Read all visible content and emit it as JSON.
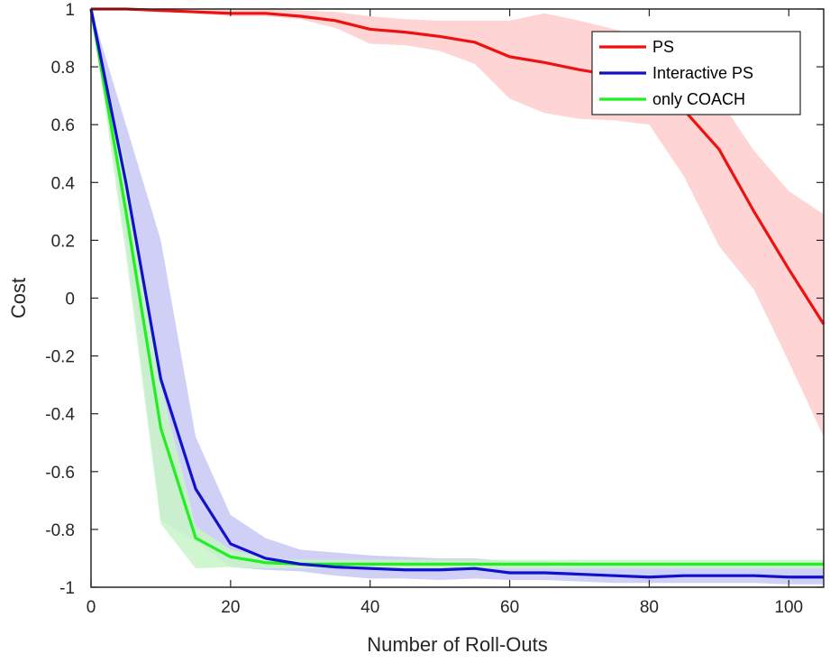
{
  "chart_data": {
    "type": "line",
    "xlabel": "Number of Roll-Outs",
    "ylabel": "Cost",
    "xlim": [
      0,
      105
    ],
    "ylim": [
      -1,
      1
    ],
    "xticks": [
      0,
      20,
      40,
      60,
      80,
      100
    ],
    "yticks": [
      1,
      0.8,
      0.6,
      0.4,
      0.2,
      0,
      -0.2,
      -0.4,
      -0.6,
      -0.8,
      -1
    ],
    "ytick_labels": [
      "1",
      "0.8",
      "0.6",
      "0.4",
      "0.2",
      "0",
      "-0.2",
      "-0.4",
      "-0.6",
      "-0.8",
      "-1"
    ],
    "xtick_labels": [
      "0",
      "20",
      "40",
      "60",
      "80",
      "100"
    ],
    "grid": false,
    "legend_position": "top-right",
    "series": [
      {
        "name": "PS",
        "color": "#ee1111",
        "band_color": "#ffcccc",
        "x": [
          0,
          5,
          10,
          15,
          20,
          25,
          30,
          35,
          40,
          45,
          50,
          55,
          60,
          65,
          70,
          75,
          80,
          85,
          90,
          95,
          100,
          105
        ],
        "y": [
          1.0,
          1.0,
          0.995,
          0.99,
          0.985,
          0.985,
          0.975,
          0.96,
          0.93,
          0.92,
          0.905,
          0.885,
          0.835,
          0.815,
          0.79,
          0.77,
          0.7,
          0.65,
          0.515,
          0.3,
          0.1,
          -0.09
        ],
        "upper": [
          1.0,
          1.0,
          1.0,
          1.0,
          1.0,
          1.0,
          0.995,
          0.99,
          0.975,
          0.965,
          0.96,
          0.96,
          0.96,
          0.985,
          0.96,
          0.93,
          0.9,
          0.78,
          0.69,
          0.51,
          0.37,
          0.29
        ],
        "lower": [
          1.0,
          1.0,
          0.99,
          0.985,
          0.975,
          0.975,
          0.965,
          0.935,
          0.88,
          0.875,
          0.855,
          0.81,
          0.69,
          0.64,
          0.62,
          0.615,
          0.6,
          0.42,
          0.18,
          0.03,
          -0.22,
          -0.48
        ]
      },
      {
        "name": "Interactive PS",
        "color": "#1111cc",
        "band_color": "#c8c8f4",
        "x": [
          0,
          5,
          10,
          15,
          20,
          25,
          30,
          35,
          40,
          45,
          50,
          55,
          60,
          65,
          70,
          75,
          80,
          85,
          90,
          95,
          100,
          105
        ],
        "y": [
          1.0,
          0.4,
          -0.28,
          -0.66,
          -0.85,
          -0.9,
          -0.92,
          -0.93,
          -0.935,
          -0.94,
          -0.94,
          -0.935,
          -0.95,
          -0.95,
          -0.955,
          -0.96,
          -0.965,
          -0.96,
          -0.96,
          -0.96,
          -0.965,
          -0.965
        ],
        "upper": [
          1.0,
          0.6,
          0.2,
          -0.48,
          -0.75,
          -0.83,
          -0.87,
          -0.88,
          -0.89,
          -0.895,
          -0.9,
          -0.9,
          -0.91,
          -0.91,
          -0.915,
          -0.92,
          -0.925,
          -0.92,
          -0.92,
          -0.92,
          -0.925,
          -0.925
        ],
        "lower": [
          1.0,
          0.2,
          -0.77,
          -0.84,
          -0.93,
          -0.94,
          -0.945,
          -0.96,
          -0.97,
          -0.97,
          -0.975,
          -0.97,
          -0.975,
          -0.975,
          -0.98,
          -0.985,
          -0.985,
          -0.985,
          -0.985,
          -0.985,
          -0.99,
          -0.99
        ]
      },
      {
        "name": "only COACH",
        "color": "#22ee22",
        "band_color": "#c8f4c8",
        "x": [
          0,
          5,
          10,
          15,
          20,
          25,
          30,
          35,
          40,
          45,
          50,
          55,
          60,
          65,
          70,
          75,
          80,
          85,
          90,
          95,
          100,
          105
        ],
        "y": [
          1.0,
          0.3,
          -0.45,
          -0.83,
          -0.895,
          -0.915,
          -0.92,
          -0.92,
          -0.92,
          -0.92,
          -0.92,
          -0.92,
          -0.92,
          -0.92,
          -0.92,
          -0.92,
          -0.92,
          -0.92,
          -0.92,
          -0.92,
          -0.92,
          -0.92
        ],
        "upper": [
          1.0,
          0.45,
          -0.3,
          -0.79,
          -0.87,
          -0.9,
          -0.905,
          -0.905,
          -0.905,
          -0.905,
          -0.905,
          -0.905,
          -0.905,
          -0.905,
          -0.905,
          -0.905,
          -0.905,
          -0.905,
          -0.905,
          -0.905,
          -0.905,
          -0.905
        ],
        "lower": [
          1.0,
          0.15,
          -0.78,
          -0.935,
          -0.93,
          -0.935,
          -0.935,
          -0.935,
          -0.935,
          -0.935,
          -0.935,
          -0.935,
          -0.935,
          -0.935,
          -0.935,
          -0.935,
          -0.935,
          -0.935,
          -0.935,
          -0.935,
          -0.935,
          -0.935
        ]
      }
    ]
  }
}
